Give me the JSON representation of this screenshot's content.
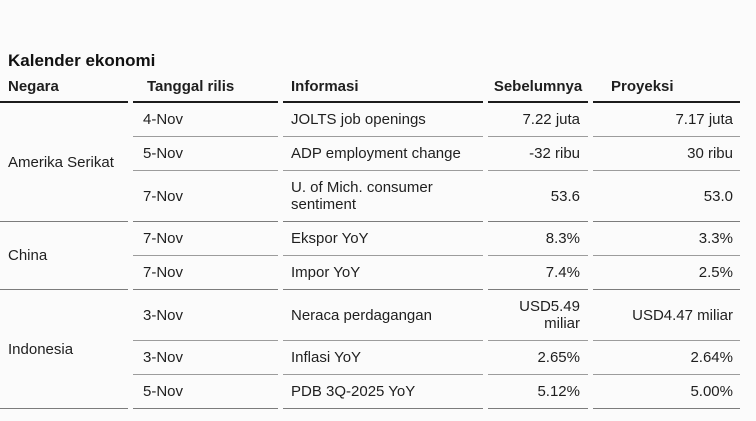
{
  "title": "Kalender ekonomi",
  "colors": {
    "background": "#fbfbfb",
    "text": "#1f1f1f",
    "header_rule": "#1c1c1c",
    "row_rule": "#9c9c9c",
    "group_rule": "#7c7c7c"
  },
  "table": {
    "headers": [
      "Negara",
      "Tanggal rilis",
      "Informasi",
      "Sebelumnya",
      "Proyeksi"
    ],
    "groups": [
      {
        "country": "Amerika Serikat",
        "rows": [
          {
            "date": "4-Nov",
            "info": "JOLTS job openings",
            "previous": "7.22 juta",
            "forecast": "7.17 juta"
          },
          {
            "date": "5-Nov",
            "info": "ADP employment change",
            "previous": "-32 ribu",
            "forecast": "30 ribu"
          },
          {
            "date": "7-Nov",
            "info": "U. of Mich. consumer sentiment",
            "previous": "53.6",
            "forecast": "53.0"
          }
        ]
      },
      {
        "country": "China",
        "rows": [
          {
            "date": "7-Nov",
            "info": "Ekspor YoY",
            "previous": "8.3%",
            "forecast": "3.3%"
          },
          {
            "date": "7-Nov",
            "info": "Impor YoY",
            "previous": "7.4%",
            "forecast": "2.5%"
          }
        ]
      },
      {
        "country": "Indonesia",
        "rows": [
          {
            "date": "3-Nov",
            "info": "Neraca perdagangan",
            "previous": "USD5.49 miliar",
            "forecast": "USD4.47 miliar"
          },
          {
            "date": "3-Nov",
            "info": "Inflasi YoY",
            "previous": "2.65%",
            "forecast": "2.64%"
          },
          {
            "date": "5-Nov",
            "info": "PDB 3Q-2025 YoY",
            "previous": "5.12%",
            "forecast": "5.00%"
          }
        ]
      }
    ]
  }
}
